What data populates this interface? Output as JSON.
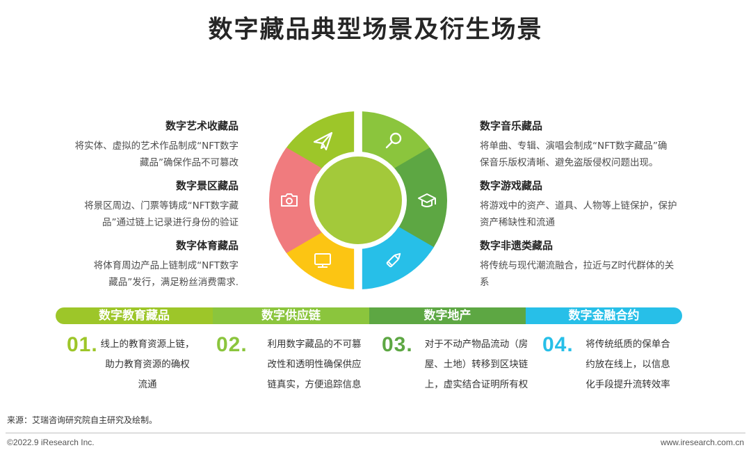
{
  "title": "数字藏品典型场景及衍生场景",
  "left_items": [
    {
      "title": "数字艺术收藏品",
      "line1": "将实体、虚拟的艺术作品制成“NFT数字",
      "line2": "藏品”确保作品不可篡改"
    },
    {
      "title": "数字景区藏品",
      "line1": "将景区周边、门票等铸成“NFT数字藏",
      "line2": "品”通过链上记录进行身份的验证"
    },
    {
      "title": "数字体育藏品",
      "line1": "将体育周边产品上链制成“NFT数字",
      "line2": "藏品”发行，满足粉丝消费需求."
    }
  ],
  "right_items": [
    {
      "title": "数字音乐藏品",
      "line1": "将单曲、专辑、演唱会制成“NFT数字藏品”确",
      "line2": "保音乐版权清晰、避免盗版侵权问题出现。"
    },
    {
      "title": "数字游戏藏品",
      "line1": "将游戏中的资产、道具、人物等上链保护，保护",
      "line2": "资产稀缺性和流通"
    },
    {
      "title": "数字非遗类藏品",
      "line1": "将传统与现代潮流融合，拉近与Z时代群体的关",
      "line2": "系"
    }
  ],
  "wheel": {
    "colors": {
      "top_left": "#9dc629",
      "top_right": "#8bc53d",
      "right": "#5da743",
      "bottom_right": "#27bfe8",
      "bottom_left": "#fcc513",
      "left": "#f07b7e",
      "center": "#a3c93a"
    },
    "icons": [
      "paper-plane-icon",
      "magnifier-icon",
      "graduation-cap-icon",
      "pencil-icon",
      "monitor-icon",
      "camera-icon"
    ]
  },
  "derived": [
    {
      "label": "数字教育藏品",
      "color": "#9dc629",
      "num": "01.",
      "lines": [
        "线上的教育资源上链，",
        "助力教育资源的确权",
        "流通"
      ]
    },
    {
      "label": "数字供应链",
      "color": "#8bc53d",
      "num": "02.",
      "lines": [
        "利用数字藏品的不可篡",
        "改性和透明性确保供应",
        "链真实，方便追踪信息"
      ]
    },
    {
      "label": "数字地产",
      "color": "#5da743",
      "num": "03.",
      "lines": [
        "对于不动产物品流动（房",
        "屋、土地）转移到区块链",
        "上，虚实结合证明所有权"
      ]
    },
    {
      "label": "数字金融合约",
      "color": "#27bfe8",
      "num": "04.",
      "lines": [
        "将传统纸质的保单合",
        "约放在线上，以信息",
        "化手段提升流转效率"
      ]
    }
  ],
  "footer": {
    "source": "来源：艾瑞咨询研究院自主研究及绘制。",
    "copyright": "©2022.9 iResearch Inc.",
    "website": "www.iresearch.com.cn"
  }
}
